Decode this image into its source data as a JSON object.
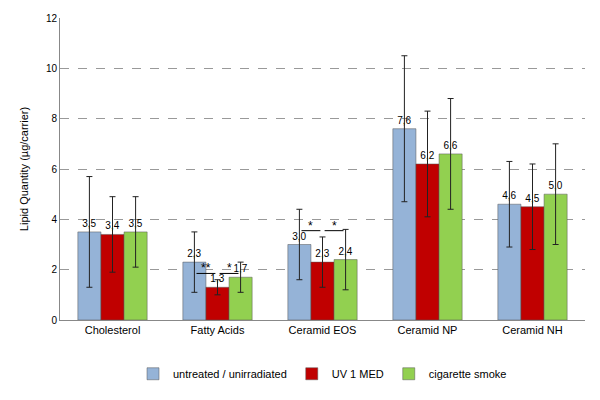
{
  "chart_data": {
    "type": "bar",
    "y_label": "Lipid Quantity (µg/carrier)",
    "categories": [
      "Cholesterol",
      "Fatty Acids",
      "Ceramid EOS",
      "Ceramid NP",
      "Ceramid NH"
    ],
    "series": [
      {
        "name": "untreated / unirradiated",
        "color": "#95b3d7",
        "values": [
          3.5,
          2.3,
          3.0,
          7.6,
          4.6
        ],
        "value_labels": [
          "3,5",
          "2,3",
          "3,0",
          "7,6",
          "4,6"
        ],
        "errors": [
          2.2,
          1.2,
          1.4,
          2.9,
          1.7
        ]
      },
      {
        "name": "UV 1 MED",
        "color": "#c00000",
        "values": [
          3.4,
          1.3,
          2.3,
          6.2,
          4.5
        ],
        "value_labels": [
          "3,4",
          "1,3",
          "2,3",
          "6,2",
          "4,5"
        ],
        "errors": [
          1.5,
          0.3,
          1.0,
          2.1,
          1.7
        ]
      },
      {
        "name": "cigarette smoke",
        "color": "#92d050",
        "values": [
          3.5,
          1.7,
          2.4,
          6.6,
          5.0
        ],
        "value_labels": [
          "3,5",
          "1,7",
          "2,4",
          "6,6",
          "5,0"
        ],
        "errors": [
          1.4,
          0.6,
          1.2,
          2.2,
          2.0
        ]
      }
    ],
    "ylim": [
      0,
      12
    ],
    "yticks": [
      0,
      2,
      4,
      6,
      8,
      10,
      12
    ],
    "grid": true,
    "legend": "bottom",
    "data_labels": true,
    "annotations": [
      {
        "category": "Fatty Acids",
        "series": [
          "untreated / unirradiated",
          "UV 1 MED"
        ],
        "text": "**"
      },
      {
        "category": "Fatty Acids",
        "series": [
          "UV 1 MED",
          "cigarette smoke"
        ],
        "text": "*"
      },
      {
        "category": "Ceramid EOS",
        "series": [
          "untreated / unirradiated",
          "UV 1 MED"
        ],
        "text": "*"
      },
      {
        "category": "Ceramid EOS",
        "series": [
          "UV 1 MED",
          "cigarette smoke"
        ],
        "text": "*"
      }
    ]
  }
}
